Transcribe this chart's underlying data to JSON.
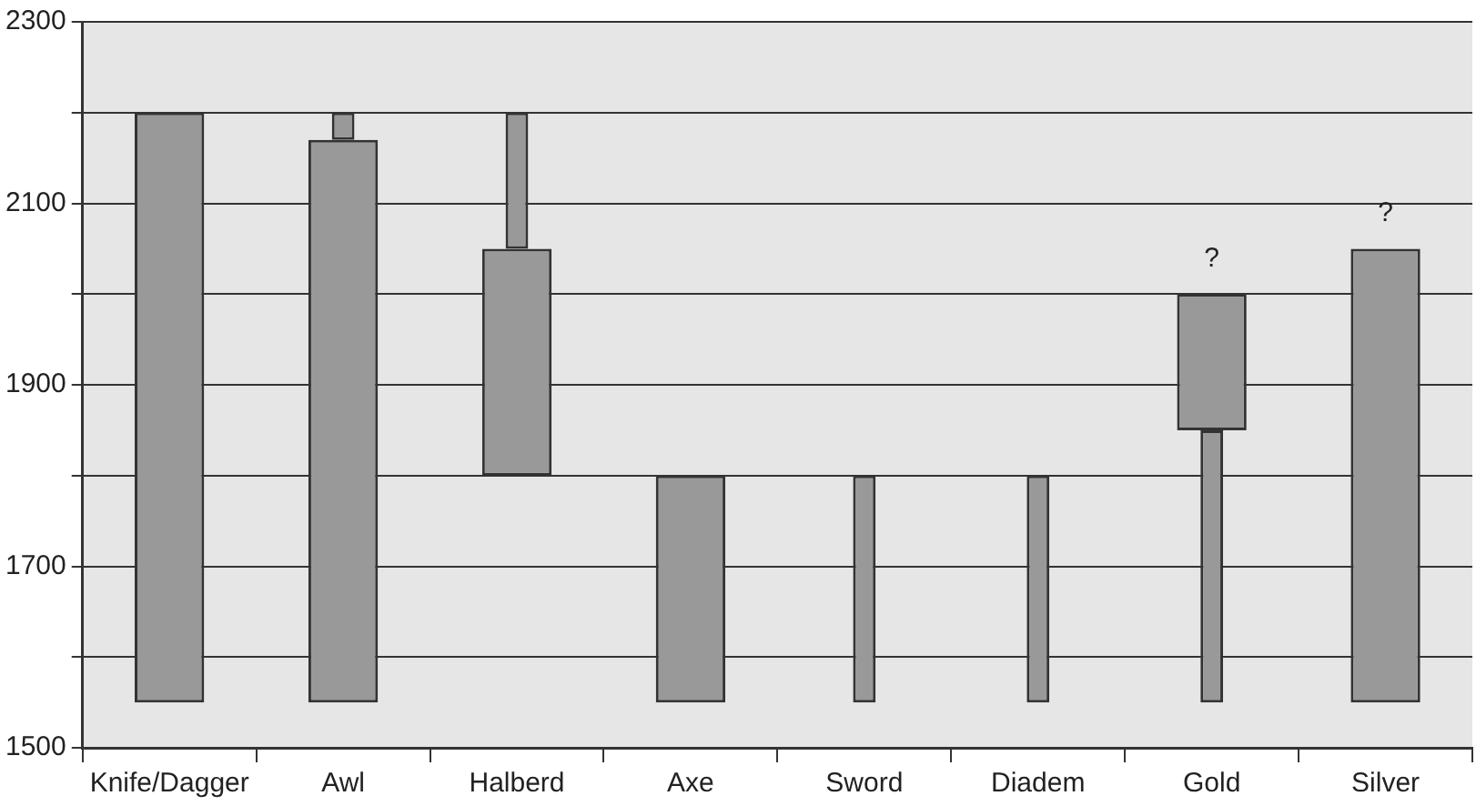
{
  "chart_data": {
    "type": "bar",
    "categories": [
      "Knife/Dagger",
      "Awl",
      "Halberd",
      "Axe",
      "Sword",
      "Diadem",
      "Gold",
      "Silver"
    ],
    "series": [
      {
        "color": "#999999",
        "base": [
          1550,
          1550,
          1800,
          1550,
          null,
          null,
          1850,
          1550
        ],
        "values": [
          650,
          620,
          250,
          250,
          null,
          null,
          150,
          500
        ]
      },
      {
        "color": "#999999",
        "base": [
          null,
          2170,
          2050,
          null,
          1550,
          1550,
          1550,
          null
        ],
        "values": [
          null,
          30,
          150,
          null,
          250,
          250,
          300,
          null
        ]
      }
    ],
    "ylim": [
      1500,
      2300
    ],
    "yticks": [
      1500,
      {
        "value": 1600,
        "label": null
      },
      1700,
      {
        "value": 1800,
        "label": null
      },
      1900,
      {
        "value": 2000,
        "label": null
      },
      2100,
      {
        "value": 2200,
        "label": null
      },
      2300
    ],
    "grid": "y",
    "annotations": [
      {
        "text": "?",
        "x": "Gold",
        "y": 2000
      },
      {
        "text": "?",
        "x": "Silver",
        "y": 2050
      }
    ]
  }
}
